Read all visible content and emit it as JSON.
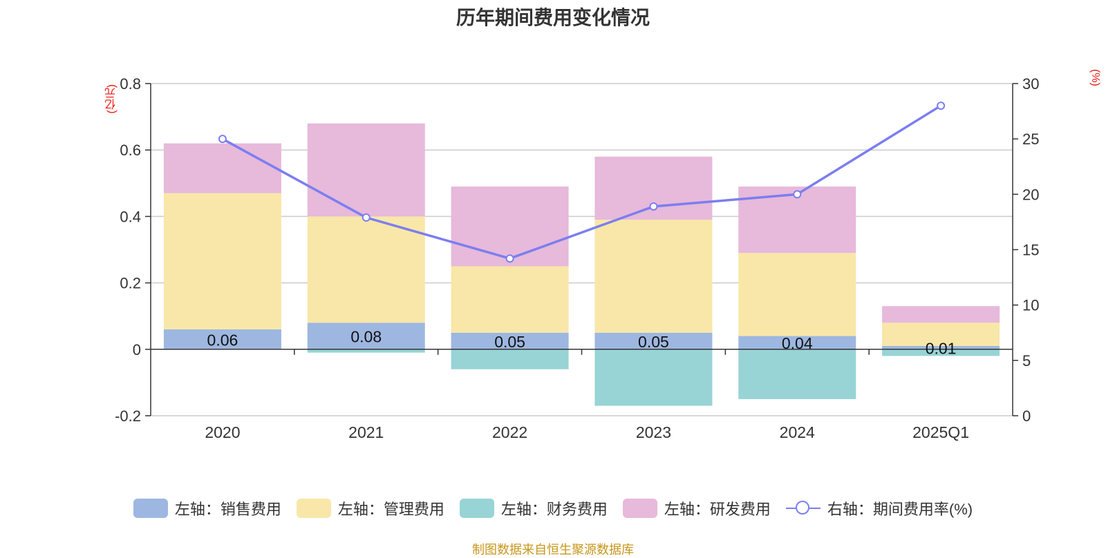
{
  "chart_data": {
    "type": "bar",
    "title": "历年期间费用变化情况",
    "ylabel_left": "(亿元)",
    "ylabel_right": "(%)",
    "categories": [
      "2020",
      "2021",
      "2022",
      "2023",
      "2024",
      "2025Q1"
    ],
    "ylim_left": [
      -0.2,
      0.8
    ],
    "ylim_right": [
      0,
      30
    ],
    "yticks_left": [
      "0.8",
      "0.6",
      "0.4",
      "0.2",
      "0",
      "-0.2"
    ],
    "yticks_right": [
      "30",
      "25",
      "20",
      "15",
      "10",
      "5",
      "0"
    ],
    "grid": true,
    "stacked": true,
    "series": [
      {
        "name": "左轴：销售费用",
        "axis": "left",
        "type": "bar",
        "color": "#9db7e0",
        "values": [
          0.06,
          0.08,
          0.05,
          0.05,
          0.04,
          0.01
        ],
        "labels": [
          "0.06",
          "0.08",
          "0.05",
          "0.05",
          "0.04",
          "0.01"
        ]
      },
      {
        "name": "左轴：管理费用",
        "axis": "left",
        "type": "bar",
        "color": "#f8e7a8",
        "values": [
          0.41,
          0.32,
          0.2,
          0.34,
          0.25,
          0.07
        ]
      },
      {
        "name": "左轴：财务费用",
        "axis": "left",
        "type": "bar",
        "color": "#98d4d5",
        "values": [
          0.0,
          -0.01,
          -0.06,
          -0.17,
          -0.15,
          -0.02
        ]
      },
      {
        "name": "左轴：研发费用",
        "axis": "left",
        "type": "bar",
        "color": "#e7b9da",
        "values": [
          0.15,
          0.28,
          0.24,
          0.19,
          0.2,
          0.05
        ]
      },
      {
        "name": "右轴：期间费用率(%)",
        "axis": "right",
        "type": "line",
        "color": "#7b7ef0",
        "values": [
          25.0,
          17.9,
          14.2,
          18.9,
          20.0,
          28.0
        ]
      }
    ],
    "legend_position": "bottom",
    "source": "制图数据来自恒生聚源数据库"
  }
}
